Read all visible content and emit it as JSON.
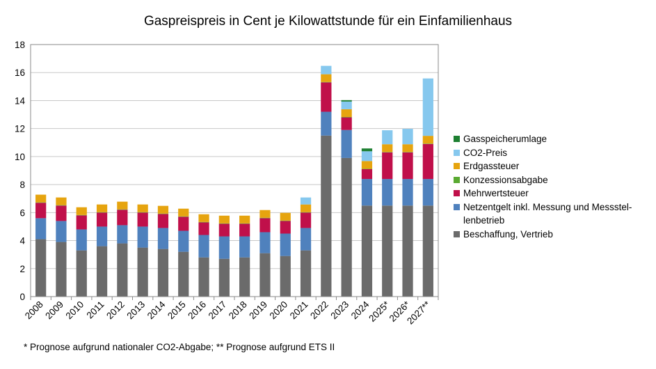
{
  "chart_data": {
    "type": "bar",
    "stacked": true,
    "title": "Gaspreispreis in Cent je Kilowattstunde für ein Einfamilienhaus",
    "footnote": "* Prognose aufgrund nationaler CO2-Abgabe; ** Prognose aufgrund ETS II",
    "ylim": [
      0,
      18
    ],
    "yticks": [
      0,
      2,
      4,
      6,
      8,
      10,
      12,
      14,
      16,
      18
    ],
    "grid": true,
    "legend_position": "right",
    "categories": [
      "2008",
      "2009",
      "2010",
      "2011",
      "2012",
      "2013",
      "2014",
      "2015",
      "2016",
      "2017",
      "2018",
      "2019",
      "2020",
      "2021",
      "2022",
      "2023",
      "2024",
      "2025*",
      "2026*",
      "2027**"
    ],
    "series": [
      {
        "name": "Beschaffung, Vertrieb",
        "color": "#6b6b6b",
        "values": [
          4.1,
          3.9,
          3.3,
          3.6,
          3.8,
          3.5,
          3.4,
          3.2,
          2.8,
          2.7,
          2.8,
          3.1,
          2.9,
          3.3,
          11.5,
          9.9,
          6.5,
          6.5,
          6.5,
          6.5
        ]
      },
      {
        "name": "Netzentgelt inkl. Messung und Messstellenbetrieb",
        "color": "#4f81bd",
        "values": [
          1.5,
          1.5,
          1.5,
          1.4,
          1.3,
          1.5,
          1.5,
          1.5,
          1.6,
          1.6,
          1.5,
          1.5,
          1.6,
          1.6,
          1.7,
          2.0,
          1.9,
          1.9,
          1.9,
          1.9
        ]
      },
      {
        "name": "Mehrwertsteuer",
        "color": "#c0104a",
        "values": [
          1.1,
          1.1,
          1.0,
          1.0,
          1.1,
          1.0,
          1.0,
          1.0,
          0.9,
          0.9,
          0.9,
          1.0,
          0.9,
          1.1,
          2.1,
          0.9,
          0.7,
          1.9,
          1.9,
          2.5
        ]
      },
      {
        "name": "Konzessionsabgabe",
        "color": "#5aaa32",
        "values": [
          0.03,
          0.03,
          0.03,
          0.03,
          0.03,
          0.03,
          0.03,
          0.03,
          0.03,
          0.03,
          0.03,
          0.03,
          0.03,
          0.03,
          0.03,
          0.03,
          0.03,
          0.03,
          0.03,
          0.03
        ]
      },
      {
        "name": "Erdgassteuer",
        "color": "#e6a40f",
        "values": [
          0.55,
          0.55,
          0.55,
          0.55,
          0.55,
          0.55,
          0.55,
          0.55,
          0.55,
          0.55,
          0.55,
          0.55,
          0.55,
          0.55,
          0.55,
          0.55,
          0.55,
          0.55,
          0.55,
          0.55
        ]
      },
      {
        "name": "CO2-Preis",
        "color": "#86c8ee",
        "values": [
          0,
          0,
          0,
          0,
          0,
          0,
          0,
          0,
          0,
          0,
          0,
          0,
          0,
          0.5,
          0.6,
          0.55,
          0.7,
          1.0,
          1.1,
          4.1
        ]
      },
      {
        "name": "Gasspeicherumlage",
        "color": "#1d7f31",
        "values": [
          0,
          0,
          0,
          0,
          0,
          0,
          0,
          0,
          0,
          0,
          0,
          0,
          0,
          0,
          0,
          0.1,
          0.2,
          0,
          0,
          0
        ]
      }
    ],
    "legend_order": [
      "Gasspeicherumlage",
      "CO2-Preis",
      "Erdgassteuer",
      "Konzessionsabgabe",
      "Mehrwertsteuer",
      "Netzentgelt inkl. Messung und Messstellenbetrieb",
      "Beschaffung, Vertrieb"
    ],
    "legend_labels": {
      "Netzentgelt inkl. Messung und Messstellenbetrieb": "Netzentgelt inkl. Messung und Messstel-\nlenbetrieb"
    },
    "grid_color": "#c8c8c8",
    "axis_color": "#888888"
  }
}
